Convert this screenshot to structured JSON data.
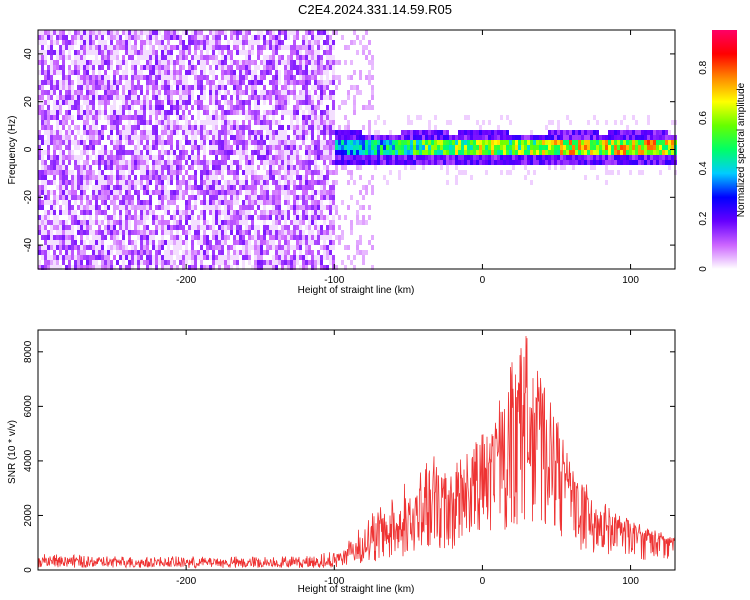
{
  "title": "C2E4.2024.331.14.59.R05",
  "chart_data": [
    {
      "type": "heatmap",
      "xlabel": "Height of straight line (km)",
      "ylabel": "Frequency (Hz)",
      "xlim": [
        -300,
        130
      ],
      "ylim": [
        -50,
        50
      ],
      "xticks": [
        -200,
        -100,
        0,
        100
      ],
      "yticks": [
        -40,
        -20,
        0,
        20,
        40
      ],
      "colorbar": {
        "label": "Normalized spectral amplitude",
        "range": [
          0,
          0.95
        ],
        "ticks": [
          0.0,
          0.2,
          0.4,
          0.6,
          0.8
        ],
        "colors": [
          "#ffffff",
          "#cc66ff",
          "#6600ff",
          "#0000ff",
          "#00ccff",
          "#00ff66",
          "#66ff00",
          "#ffff00",
          "#ff8800",
          "#ff0000",
          "#ff0066"
        ]
      },
      "noise_region": {
        "x": [
          -300,
          -100
        ],
        "amplitude": 0.15
      },
      "signal_band": {
        "x": [
          -100,
          130
        ],
        "center_freq": [
          2,
          1,
          1,
          2,
          1,
          2,
          1,
          1,
          2,
          1,
          2,
          1
        ],
        "center_x": [
          -100,
          -80,
          -60,
          -40,
          -20,
          0,
          20,
          40,
          60,
          80,
          100,
          130
        ],
        "peak_amplitude": [
          0.45,
          0.5,
          0.55,
          0.65,
          0.7,
          0.75,
          0.7,
          0.75,
          0.8,
          0.8,
          0.85,
          0.8
        ]
      }
    },
    {
      "type": "line",
      "xlabel": "Height of straight line (km)",
      "ylabel": "SNR (10 * v/v)",
      "xlim": [
        -300,
        130
      ],
      "ylim": [
        0,
        8800
      ],
      "xticks": [
        -200,
        -100,
        0,
        100
      ],
      "yticks": [
        0,
        2000,
        4000,
        6000,
        8000
      ],
      "color": "#ee3333",
      "series": [
        {
          "x": [
            -300,
            -250,
            -200,
            -150,
            -120,
            -100,
            -90,
            -80,
            -70,
            -60,
            -50,
            -40,
            -30,
            -20,
            -10,
            0,
            10,
            20,
            25,
            30,
            35,
            40,
            50,
            60,
            70,
            80,
            90,
            100,
            110,
            120,
            130
          ],
          "y": [
            300,
            280,
            250,
            250,
            260,
            300,
            600,
            800,
            1100,
            1300,
            1600,
            2000,
            2300,
            2600,
            2700,
            3100,
            4000,
            5000,
            5800,
            6300,
            5800,
            5200,
            4000,
            2900,
            2200,
            1800,
            1500,
            1300,
            1200,
            1100,
            1000
          ],
          "peak_envelope": [
            600,
            500,
            500,
            500,
            500,
            700,
            1200,
            1800,
            2400,
            2900,
            3300,
            3800,
            4400,
            4000,
            4800,
            5000,
            6000,
            7800,
            8300,
            8700,
            7800,
            7000,
            5600,
            4100,
            3200,
            2600,
            2100,
            1900,
            1600,
            1400,
            1300
          ]
        }
      ]
    }
  ]
}
